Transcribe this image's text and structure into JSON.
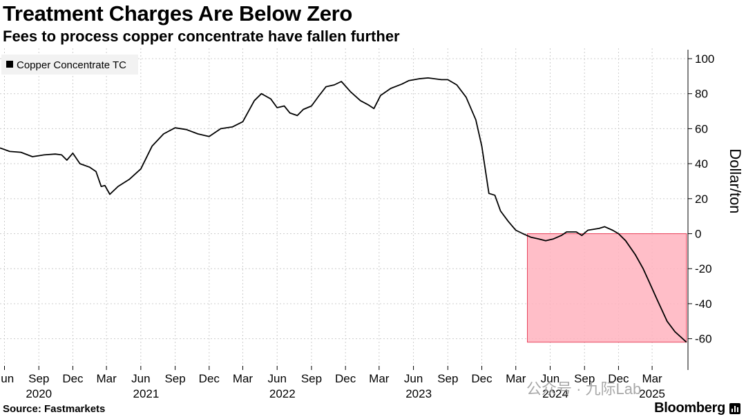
{
  "header": {
    "title": "Treatment Charges Are Below Zero",
    "subtitle": "Fees to process copper concentrate have fallen further"
  },
  "footer": {
    "source": "Source: Fastmarkets",
    "brand": "Bloomberg"
  },
  "watermark": "公众号 · 九际Lab",
  "colors": {
    "line": "#000000",
    "highlight_fill": "#ffb3be",
    "highlight_stroke": "#e8405a",
    "grid": "#cccccc",
    "legend_bg": "#f2f2f2"
  },
  "chart_data": {
    "type": "line",
    "title": "Treatment Charges Are Below Zero",
    "subtitle": "Fees to process copper concentrate have fallen further",
    "ylabel": "Dollar/ton",
    "ylim": [
      -70,
      100
    ],
    "yticks": [
      100,
      80,
      60,
      40,
      20,
      0,
      -20,
      -40,
      -60
    ],
    "grid": true,
    "legend_position": "top-left",
    "xlim": [
      "2020-05-20",
      "2025-06-05"
    ],
    "x_ticks": [
      {
        "date": "2020-06-01",
        "label": "Jun"
      },
      {
        "date": "2020-09-01",
        "label": "Sep"
      },
      {
        "date": "2020-12-01",
        "label": "Dec"
      },
      {
        "date": "2021-03-01",
        "label": "Mar"
      },
      {
        "date": "2021-06-01",
        "label": "Jun"
      },
      {
        "date": "2021-09-01",
        "label": "Sep"
      },
      {
        "date": "2021-12-01",
        "label": "Dec"
      },
      {
        "date": "2022-03-01",
        "label": "Mar"
      },
      {
        "date": "2022-06-01",
        "label": "Jun"
      },
      {
        "date": "2022-09-01",
        "label": "Sep"
      },
      {
        "date": "2022-12-01",
        "label": "Dec"
      },
      {
        "date": "2023-03-01",
        "label": "Mar"
      },
      {
        "date": "2023-06-01",
        "label": "Jun"
      },
      {
        "date": "2023-09-01",
        "label": "Sep"
      },
      {
        "date": "2023-12-01",
        "label": "Dec"
      },
      {
        "date": "2024-03-01",
        "label": "Mar"
      },
      {
        "date": "2024-06-01",
        "label": "Jun"
      },
      {
        "date": "2024-09-01",
        "label": "Sep"
      },
      {
        "date": "2024-12-01",
        "label": "Dec"
      },
      {
        "date": "2025-03-01",
        "label": "Mar"
      }
    ],
    "year_labels": [
      {
        "date": "2020-09-01",
        "label": "2020"
      },
      {
        "date": "2021-06-15",
        "label": "2021"
      },
      {
        "date": "2022-06-15",
        "label": "2022"
      },
      {
        "date": "2023-06-15",
        "label": "2023"
      },
      {
        "date": "2024-06-15",
        "label": "2024"
      },
      {
        "date": "2025-03-01",
        "label": "2025"
      }
    ],
    "highlight_region": {
      "x0": "2024-04-01",
      "x1": "2025-06-01",
      "y0": -62,
      "y1": 0
    },
    "series": [
      {
        "name": "Copper Concentrate TC",
        "points": [
          [
            "2020-05-20",
            49
          ],
          [
            "2020-06-15",
            47
          ],
          [
            "2020-07-15",
            46.5
          ],
          [
            "2020-08-15",
            44
          ],
          [
            "2020-09-15",
            45
          ],
          [
            "2020-10-15",
            45.5
          ],
          [
            "2020-11-01",
            45
          ],
          [
            "2020-11-15",
            42
          ],
          [
            "2020-12-01",
            46
          ],
          [
            "2020-12-20",
            40
          ],
          [
            "2021-01-15",
            38
          ],
          [
            "2021-02-01",
            35.5
          ],
          [
            "2021-02-15",
            27
          ],
          [
            "2021-02-25",
            27.5
          ],
          [
            "2021-03-10",
            22.5
          ],
          [
            "2021-04-01",
            27
          ],
          [
            "2021-05-01",
            31
          ],
          [
            "2021-06-01",
            37
          ],
          [
            "2021-07-01",
            50
          ],
          [
            "2021-08-01",
            57
          ],
          [
            "2021-09-01",
            60.5
          ],
          [
            "2021-10-01",
            59.5
          ],
          [
            "2021-11-01",
            57
          ],
          [
            "2021-12-01",
            55.5
          ],
          [
            "2022-01-01",
            60
          ],
          [
            "2022-02-01",
            61
          ],
          [
            "2022-03-01",
            64
          ],
          [
            "2022-04-01",
            76
          ],
          [
            "2022-04-20",
            80
          ],
          [
            "2022-05-15",
            77
          ],
          [
            "2022-06-01",
            72
          ],
          [
            "2022-06-20",
            73
          ],
          [
            "2022-07-05",
            69
          ],
          [
            "2022-07-25",
            67.5
          ],
          [
            "2022-08-10",
            71
          ],
          [
            "2022-09-01",
            73
          ],
          [
            "2022-09-20",
            78.5
          ],
          [
            "2022-10-10",
            84
          ],
          [
            "2022-11-01",
            85
          ],
          [
            "2022-11-20",
            87
          ],
          [
            "2022-12-15",
            81
          ],
          [
            "2023-01-10",
            76
          ],
          [
            "2023-02-01",
            73.5
          ],
          [
            "2023-02-15",
            71.5
          ],
          [
            "2023-03-05",
            79
          ],
          [
            "2023-04-01",
            83
          ],
          [
            "2023-05-01",
            85.5
          ],
          [
            "2023-05-20",
            87.5
          ],
          [
            "2023-06-15",
            88.5
          ],
          [
            "2023-07-10",
            89
          ],
          [
            "2023-08-15",
            88
          ],
          [
            "2023-09-01",
            88
          ],
          [
            "2023-09-25",
            85
          ],
          [
            "2023-10-20",
            78
          ],
          [
            "2023-11-15",
            65
          ],
          [
            "2023-12-01",
            50
          ],
          [
            "2023-12-20",
            23
          ],
          [
            "2024-01-05",
            22
          ],
          [
            "2024-01-20",
            13
          ],
          [
            "2024-02-10",
            7
          ],
          [
            "2024-03-01",
            2
          ],
          [
            "2024-03-20",
            0
          ],
          [
            "2024-04-10",
            -2
          ],
          [
            "2024-05-01",
            -3
          ],
          [
            "2024-05-20",
            -4
          ],
          [
            "2024-06-10",
            -3
          ],
          [
            "2024-07-01",
            -1
          ],
          [
            "2024-07-15",
            1
          ],
          [
            "2024-08-10",
            1
          ],
          [
            "2024-08-25",
            -1
          ],
          [
            "2024-09-10",
            2
          ],
          [
            "2024-10-10",
            3
          ],
          [
            "2024-10-25",
            4
          ],
          [
            "2024-11-15",
            2
          ],
          [
            "2024-12-01",
            0
          ],
          [
            "2024-12-20",
            -4
          ],
          [
            "2025-01-15",
            -12
          ],
          [
            "2025-02-05",
            -20
          ],
          [
            "2025-02-20",
            -27
          ],
          [
            "2025-03-15",
            -38
          ],
          [
            "2025-04-10",
            -50
          ],
          [
            "2025-05-01",
            -56
          ],
          [
            "2025-06-01",
            -62
          ]
        ]
      }
    ]
  }
}
